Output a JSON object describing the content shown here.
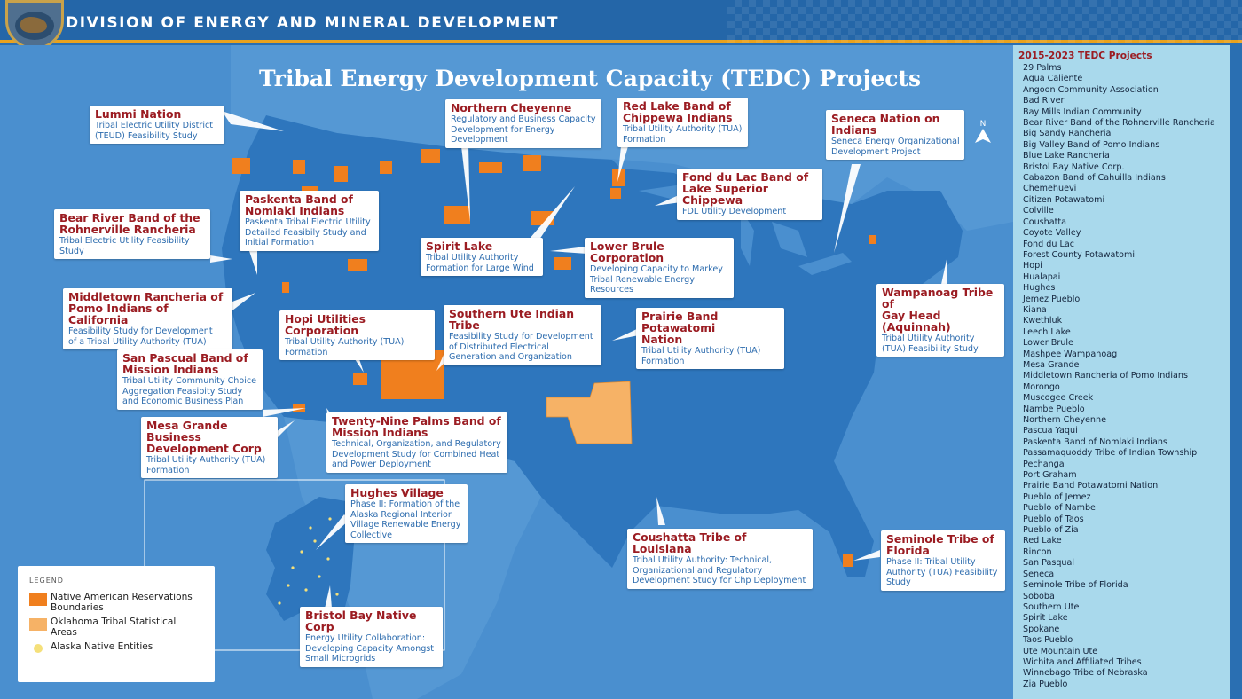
{
  "header": {
    "title": "DIVISION OF ENERGY AND MINERAL DEVELOPMENT",
    "seal_icon": "bison-seal-icon"
  },
  "map": {
    "title": "Tribal Energy Development Capacity (TEDC) Projects",
    "colors": {
      "ocean": "#4a8fcf",
      "land": "#2e76bd",
      "reservation": "#f07f1e",
      "oklahoma_area": "#f6b266",
      "alaska_dot": "#f5e07a",
      "callout_title": "#9b1c22",
      "callout_desc": "#2d6cae"
    },
    "callouts": [
      {
        "id": "lummi",
        "title": "Lummi Nation",
        "desc": "Tribal Electric Utility District\n(TEUD) Feasibility Study"
      },
      {
        "id": "northern-cheyenne",
        "title": "Northern Cheyenne",
        "desc": "Regulatory and Business Capacity\nDevelopment for Energy\nDevelopment"
      },
      {
        "id": "red-lake",
        "title": "Red Lake Band of\nChippewa Indians",
        "desc": "Tribal Utility Authority (TUA)\nFormation"
      },
      {
        "id": "seneca",
        "title": "Seneca Nation on\nIndians",
        "desc": "Seneca Energy Organizational\nDevelopment Project"
      },
      {
        "id": "fond-du-lac",
        "title": "Fond du Lac Band of\nLake Superior Chippewa",
        "desc": "FDL Utility Development"
      },
      {
        "id": "paskenta",
        "title": "Paskenta Band of\nNomlaki Indians",
        "desc": "Paskenta Tribal Electric Utility\nDetailed Feasibily Study and\nInitial Formation"
      },
      {
        "id": "bear-river",
        "title": "Bear River Band of the\nRohnerville Rancheria",
        "desc": "Tribal Electric Utility Feasibility\nStudy"
      },
      {
        "id": "spirit-lake",
        "title": "Spirit Lake",
        "desc": "Tribal Utility Authority\nFormation for Large Wind"
      },
      {
        "id": "lower-brule",
        "title": "Lower Brule Corporation",
        "desc": "Developing Capacity to Markey\nTribal Renewable Energy\nResources"
      },
      {
        "id": "middletown",
        "title": "Middletown Rancheria of\nPomo Indians of California",
        "desc": "Feasibility Study for Development\nof a Tribal Utility Authority (TUA)"
      },
      {
        "id": "wampanoag",
        "title": "Wampanoag Tribe of\nGay Head (Aquinnah)",
        "desc": "Tribal Utility Authority\n(TUA) Feasibility Study"
      },
      {
        "id": "hopi",
        "title": "Hopi Utilities Corporation",
        "desc": "Tribal Utility Authority (TUA)\nFormation"
      },
      {
        "id": "southern-ute",
        "title": "Southern Ute Indian Tribe",
        "desc": "Feasibility Study for Development\nof Distributed Electrical\nGeneration and Organization"
      },
      {
        "id": "prairie-band",
        "title": "Prairie Band Potawatomi\nNation",
        "desc": "Tribal Utility Authority (TUA)\nFormation"
      },
      {
        "id": "san-pascual",
        "title": "San Pascual Band of\nMission Indians",
        "desc": "Tribal Utility Community Choice\nAggregation Feasibity Study\nand Economic Business Plan"
      },
      {
        "id": "twenty-nine-palms",
        "title": "Twenty-Nine Palms Band of\nMission Indians",
        "desc": "Technical, Organization, and Regulatory\nDevelopment Study for Combined Heat\nand Power Deployment"
      },
      {
        "id": "mesa-grande",
        "title": "Mesa Grande Business\nDevelopment Corp",
        "desc": "Tribal Utility Authority (TUA)\nFormation"
      },
      {
        "id": "hughes",
        "title": "Hughes Village",
        "desc": "Phase II: Formation of the\nAlaska Regional Interior\nVillage Renewable Energy\nCollective"
      },
      {
        "id": "coushatta",
        "title": "Coushatta Tribe of Louisiana",
        "desc": "Tribal Utility Authority: Technical,\nOrganizational and Regulatory\nDevelopment Study for Chp Deployment"
      },
      {
        "id": "seminole",
        "title": "Seminole Tribe of\nFlorida",
        "desc": "Phase II: Tribal Utility\nAuthority (TUA) Feasibility\nStudy"
      },
      {
        "id": "bristol-bay",
        "title": "Bristol Bay Native Corp",
        "desc": "Energy Utility Collaboration:\nDeveloping Capacity Amongst\nSmall Microgrids"
      }
    ],
    "north_arrow": "N"
  },
  "legend": {
    "title": "LEGEND",
    "items": [
      {
        "label": "Native American Reservations Boundaries",
        "color": "#f07f1e",
        "shape": "square"
      },
      {
        "label": "Oklahoma Tribal Statistical Areas",
        "color": "#f6b266",
        "shape": "square"
      },
      {
        "label": "Alaska Native Entities",
        "color": "#f5e07a",
        "shape": "dot"
      }
    ]
  },
  "sidebar": {
    "title": "2015-2023 TEDC Projects",
    "items": [
      "29 Palms",
      "Agua Caliente",
      "Angoon Community Association",
      "Bad River",
      "Bay Mills Indian Community",
      "Bear River Band of the Rohnerville Rancheria",
      "Big Sandy Rancheria",
      "Big Valley Band of Pomo Indians",
      "Blue Lake Rancheria",
      "Bristol Bay Native Corp.",
      "Cabazon Band of Cahuilla Indians",
      "Chemehuevi",
      "Citizen Potawatomi",
      "Colville",
      "Coushatta",
      "Coyote Valley",
      "Fond du Lac",
      "Forest County Potawatomi",
      "Hopi",
      "Hualapai",
      "Hughes",
      "Jemez Pueblo",
      "Kiana",
      "Kwethluk",
      "Leech Lake",
      "Lower Brule",
      "Mashpee Wampanoag",
      "Mesa Grande",
      "Middletown Rancheria of Pomo Indians",
      "Morongo",
      "Muscogee Creek",
      "Nambe Pueblo",
      "Northern Cheyenne",
      "Pascua Yaqui",
      "Paskenta Band of Nomlaki Indians",
      "Passamaquoddy Tribe of Indian Township",
      "Pechanga",
      "Port Graham",
      "Prairie Band Potawatomi Nation",
      "Pueblo of Jemez",
      "Pueblo of Nambe",
      "Pueblo of Taos",
      "Pueblo of Zia",
      "Red Lake",
      "Rincon",
      "San Pasqual",
      "Seneca",
      "Seminole Tribe of Florida",
      "Soboba",
      "Southern Ute",
      "Spirit Lake",
      "Spokane",
      "Taos Pueblo",
      "Ute Mountain Ute",
      "Wichita and Affiliated Tribes",
      "Winnebago Tribe of Nebraska",
      "Zia Pueblo"
    ]
  }
}
